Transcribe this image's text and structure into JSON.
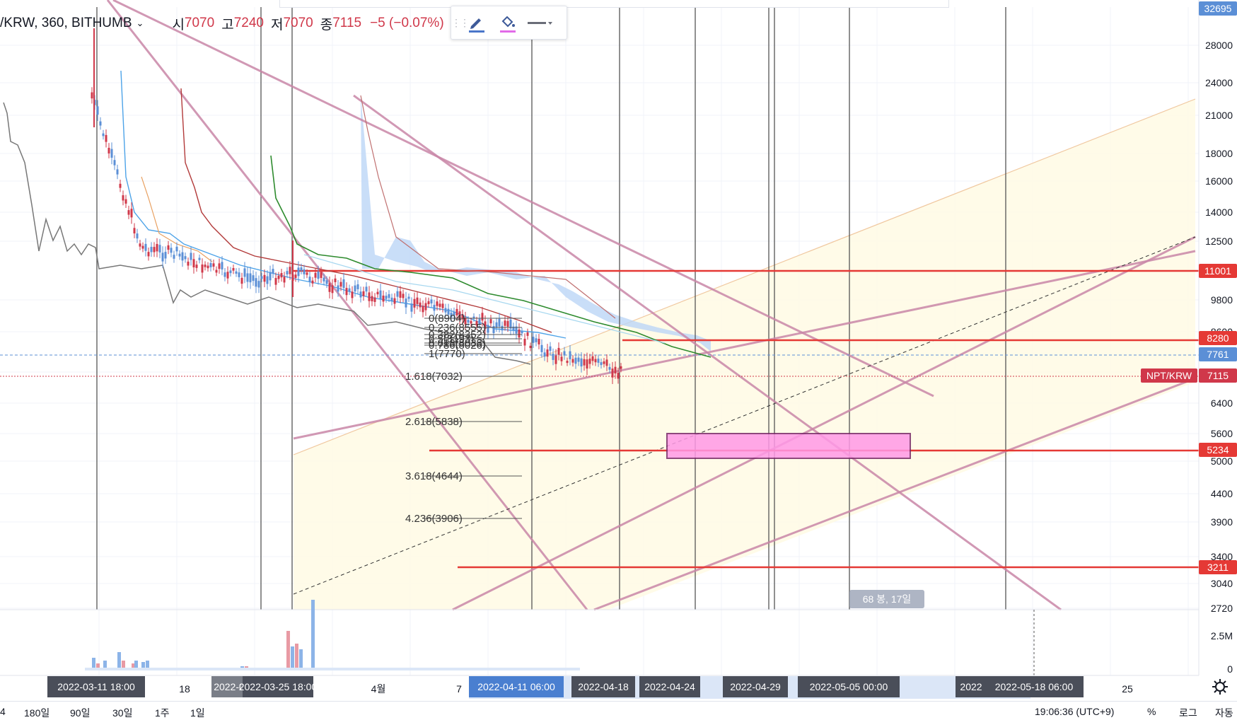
{
  "header": {
    "symbol": "/KRW, 360, BITHUMB",
    "open_label": "시",
    "open": "7070",
    "high_label": "고",
    "high": "7240",
    "low_label": "저",
    "low": "7070",
    "close_label": "종",
    "close": "7115",
    "change": "−5 (−0.07%)"
  },
  "toolbar": {
    "icons": [
      "pencil-icon",
      "paint-bucket-icon",
      "line-style-icon"
    ]
  },
  "price_axis": {
    "labels": [
      "28000",
      "24000",
      "21000",
      "18000",
      "16000",
      "14000",
      "12500",
      "9800",
      "8600",
      "7400",
      "6400",
      "5600",
      "5000",
      "4400",
      "3900",
      "3400",
      "3040",
      "2720"
    ],
    "badges": [
      {
        "text": "32695",
        "color": "#5b8fd6"
      },
      {
        "text": "11001",
        "color": "#e53935"
      },
      {
        "text": "8280",
        "color": "#e53935"
      },
      {
        "text": "7761",
        "color": "#5b8fd6"
      },
      {
        "text": "NPT/KRW",
        "color": "#d0384a"
      },
      {
        "text": "7115",
        "color": "#d0384a"
      },
      {
        "text": "5234",
        "color": "#e53935"
      },
      {
        "text": "3211",
        "color": "#e53935"
      }
    ]
  },
  "volume_axis": [
    "2.5M",
    "0"
  ],
  "time_axis": {
    "ticks": [
      "18",
      "4월",
      "7",
      "25"
    ],
    "badges": [
      {
        "text": "2022-03-11   18:00",
        "style": "dark"
      },
      {
        "text": "2022-0",
        "style": "gray"
      },
      {
        "text": "2022-03-25   18:00",
        "style": "dark"
      },
      {
        "text": "2022-04-11   06:00",
        "style": "blue"
      },
      {
        "text": "2022-04-18",
        "style": "dark"
      },
      {
        "text": "2022-04-24",
        "style": "dark"
      },
      {
        "text": "2022-04-29",
        "style": "dark"
      },
      {
        "text": "2022-05-05   00:00",
        "style": "dark"
      },
      {
        "text": "2022-05-18   06:00",
        "style": "dark"
      },
      {
        "text": "2022",
        "style": "dark"
      }
    ]
  },
  "fib_labels": [
    "0(8904)",
    "0.236(8555)",
    "0.382(8352)",
    "0.5(8193)",
    "0.618(8038)",
    "0.786(8026)",
    "1(7770)",
    "1.618(7032)",
    "2.618(5838)",
    "3.618(4644)",
    "4.236(3906)"
  ],
  "range_label": "68 봉, 17일",
  "bottom_bar": {
    "timeframes": [
      "4",
      "180일",
      "90일",
      "30일",
      "1주",
      "1일"
    ],
    "clock": "19:06:36 (UTC+9)",
    "options": [
      "%",
      "로그",
      "자동"
    ]
  },
  "colors": {
    "up": "#5b8fd6",
    "down": "#d0384a",
    "hline": "#e53935",
    "trend": "#c987a8",
    "cloud": "#bcd6f6",
    "kijun": "#b23a3a",
    "tenkan": "#4da3e8",
    "span_b": "#2e8b2e"
  }
}
